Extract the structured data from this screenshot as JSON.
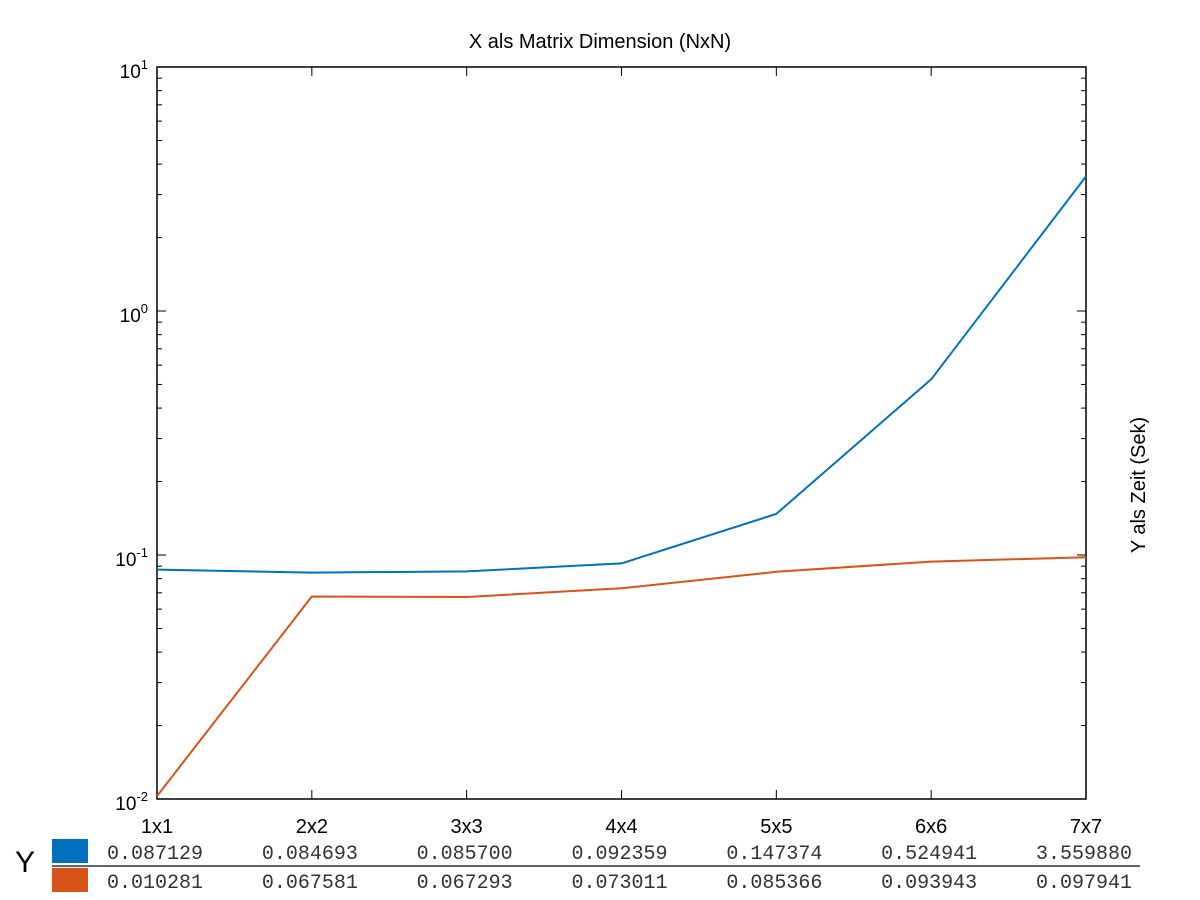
{
  "chart_data": {
    "type": "line",
    "title": "X als Matrix Dimension (NxN)",
    "xlabel": "",
    "ylabel": "Y als Zeit (Sek)",
    "categories": [
      "1x1",
      "2x2",
      "3x3",
      "4x4",
      "5x5",
      "6x6",
      "7x7"
    ],
    "yscale": "log",
    "ylim": [
      0.01,
      10
    ],
    "ytick_base": "10",
    "ytick_exponents": [
      "1",
      "0",
      "-1",
      "-2"
    ],
    "grid": false,
    "series": [
      {
        "values": [
          0.087129,
          0.084693,
          0.0857,
          0.092359,
          0.147374,
          0.524941,
          3.55988
        ],
        "color": "#0072bd"
      },
      {
        "values": [
          0.010281,
          0.067581,
          0.067293,
          0.073011,
          0.085366,
          0.093943,
          0.097941
        ],
        "color": "#d95319"
      }
    ]
  },
  "table": {
    "label": "Y",
    "rows": [
      {
        "color": "#0072bd",
        "cells": [
          "0.087129",
          "0.084693",
          "0.085700",
          "0.092359",
          "0.147374",
          "0.524941",
          "3.559880"
        ]
      },
      {
        "color": "#d95319",
        "cells": [
          "0.010281",
          "0.067581",
          "0.067293",
          "0.073011",
          "0.085366",
          "0.093943",
          "0.097941"
        ]
      }
    ]
  }
}
